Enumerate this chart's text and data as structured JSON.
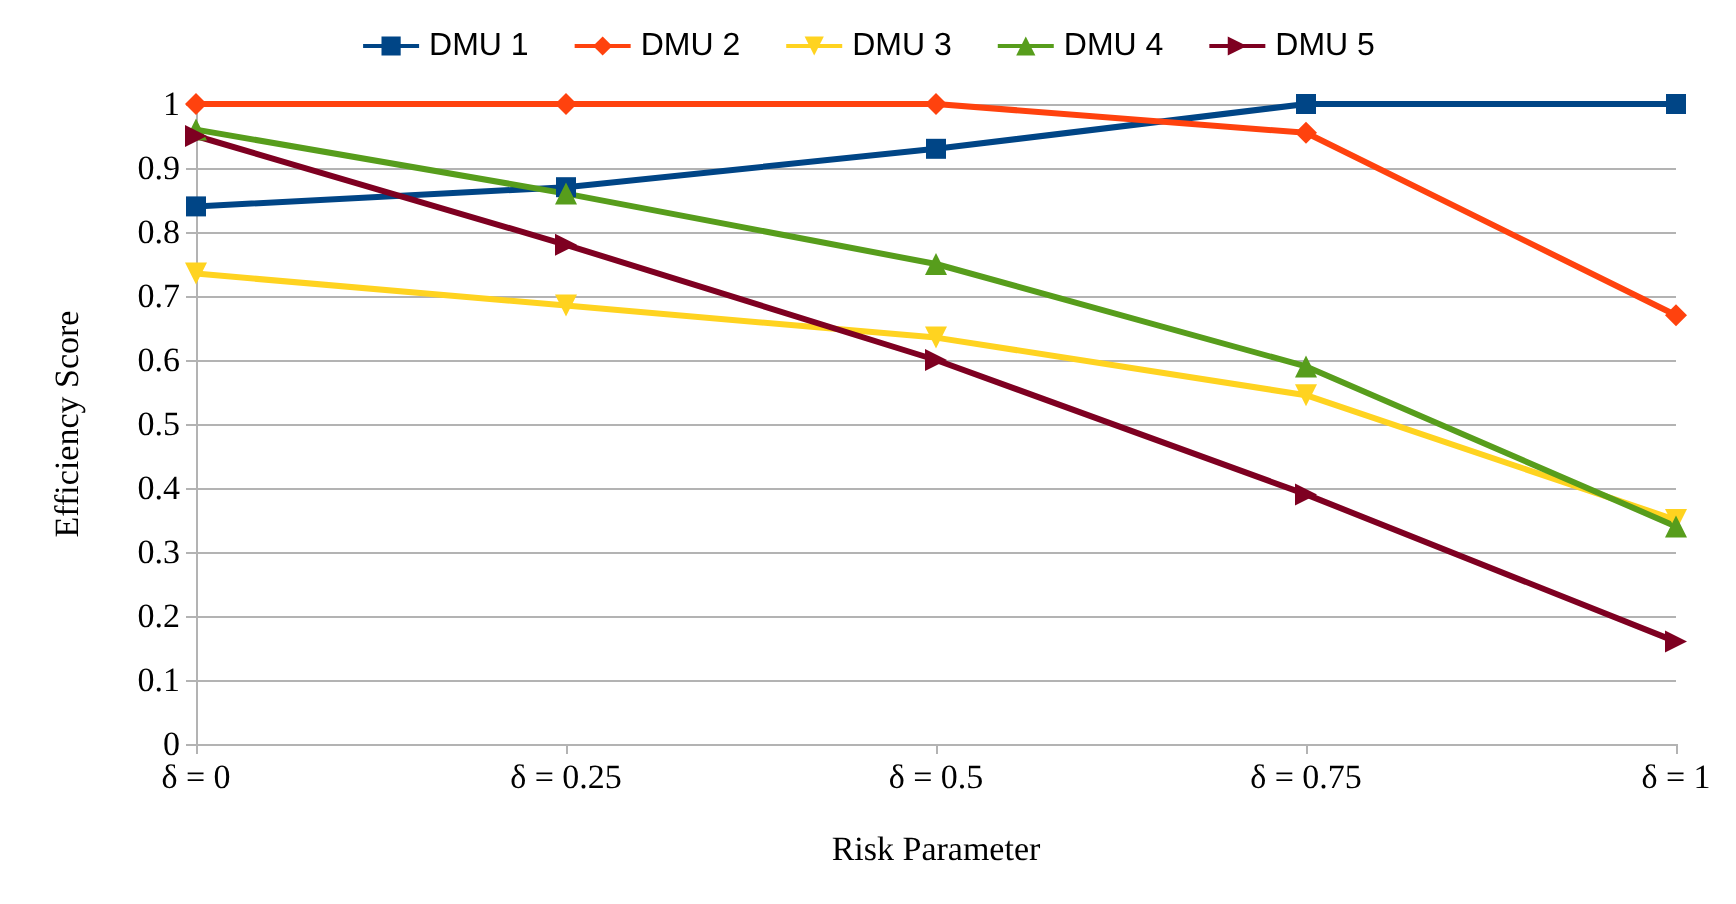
{
  "chart_data": {
    "type": "line",
    "xlabel": "Risk Parameter",
    "ylabel": "Efficiency Score",
    "categories": [
      "δ = 0",
      "δ = 0.25",
      "δ = 0.5",
      "δ = 0.75",
      "δ = 1"
    ],
    "series": [
      {
        "name": "DMU 1",
        "color": "#004586",
        "marker": "square",
        "values": [
          0.84,
          0.87,
          0.93,
          1,
          1
        ]
      },
      {
        "name": "DMU 2",
        "color": "#ff420e",
        "marker": "diamond",
        "values": [
          1,
          1,
          1,
          0.955,
          0.67
        ]
      },
      {
        "name": "DMU 3",
        "color": "#ffd320",
        "marker": "triangle-down",
        "values": [
          0.735,
          0.685,
          0.635,
          0.545,
          0.35
        ]
      },
      {
        "name": "DMU 4",
        "color": "#579d1c",
        "marker": "triangle",
        "values": [
          0.96,
          0.86,
          0.75,
          0.59,
          0.34
        ]
      },
      {
        "name": "DMU 5",
        "color": "#7e0021",
        "marker": "triangle-right",
        "values": [
          0.95,
          0.78,
          0.6,
          0.39,
          0.16
        ]
      }
    ],
    "ylim": [
      0,
      1
    ],
    "yticks": [
      0,
      0.1,
      0.2,
      0.3,
      0.4,
      0.5,
      0.6,
      0.7,
      0.8,
      0.9,
      1
    ],
    "grid": "y",
    "legend": "top",
    "line_style": "solid"
  }
}
